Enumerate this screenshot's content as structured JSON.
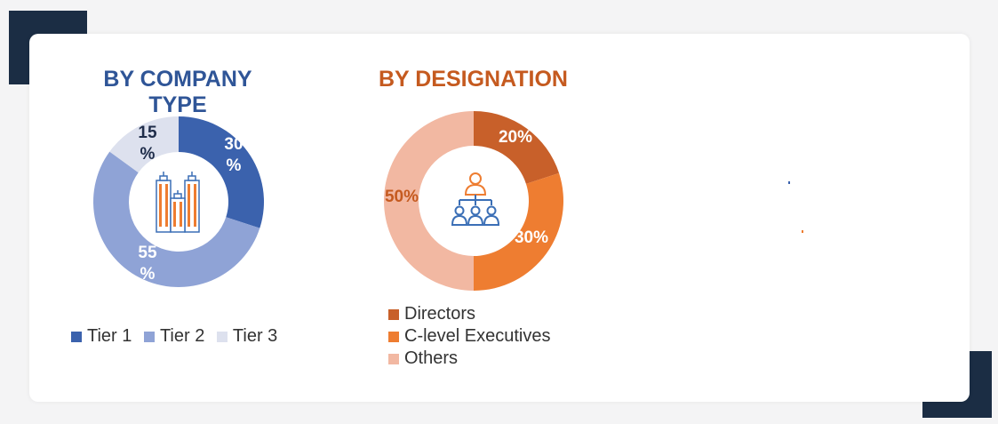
{
  "chart_data": [
    {
      "type": "pie",
      "variant": "donut",
      "title": "BY COMPANY TYPE",
      "center_icon": "buildings-icon",
      "categories": [
        "Tier 1",
        "Tier 2",
        "Tier 3"
      ],
      "values": [
        30,
        55,
        15
      ],
      "labels": [
        "30 %",
        "55 %",
        "15 %"
      ],
      "colors": [
        "#3b62ad",
        "#8fa3d6",
        "#dde1ee"
      ],
      "label_colors": [
        "#ffffff",
        "#ffffff",
        "#1f2d4a"
      ],
      "legend": "bottom"
    },
    {
      "type": "pie",
      "variant": "donut",
      "title": "BY DESIGNATION",
      "center_icon": "hierarchy-people-icon",
      "categories": [
        "Directors",
        "C-level Executives",
        "Others"
      ],
      "values": [
        20,
        30,
        50
      ],
      "labels": [
        "20%",
        "30%",
        "50%"
      ],
      "colors": [
        "#c8602a",
        "#ee7d31",
        "#f2b8a2"
      ],
      "label_colors": [
        "#ffffff",
        "#ffffff",
        "#c55a1f"
      ],
      "legend": "bottom"
    }
  ]
}
